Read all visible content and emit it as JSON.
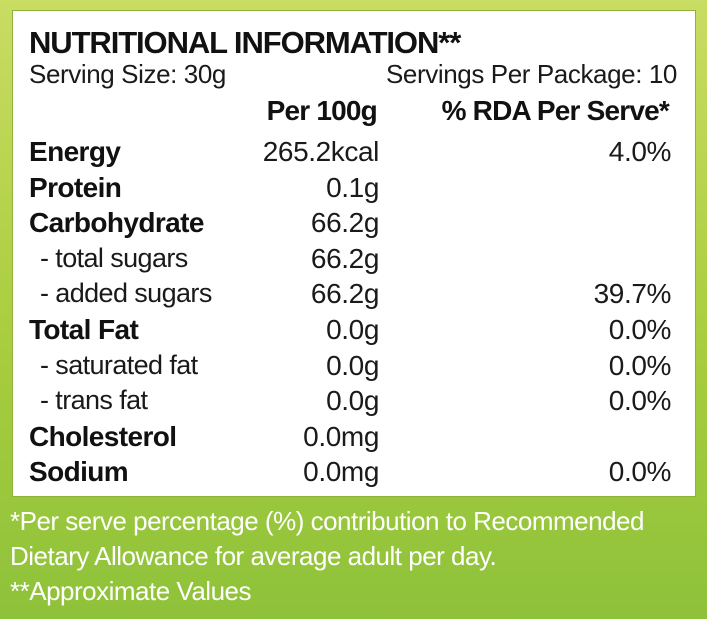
{
  "title": "NUTRITIONAL INFORMATION**",
  "serving_size": "Serving Size: 30g",
  "servings_per_package": "Servings Per Package: 10",
  "columns": {
    "per100": "Per 100g",
    "rda": "% RDA Per Serve*"
  },
  "rows": [
    {
      "label": "Energy",
      "per100": "265.2kcal",
      "rda": "4.0%"
    },
    {
      "label": "Protein",
      "per100": "0.1g",
      "rda": ""
    },
    {
      "label": "Carbohydrate",
      "per100": "66.2g",
      "rda": ""
    },
    {
      "label": "- total sugars",
      "per100": "66.2g",
      "rda": ""
    },
    {
      "label": "- added sugars",
      "per100": "66.2g",
      "rda": "39.7%"
    },
    {
      "label": "Total Fat",
      "per100": "0.0g",
      "rda": "0.0%"
    },
    {
      "label": "- saturated fat",
      "per100": "0.0g",
      "rda": "0.0%"
    },
    {
      "label": "- trans fat",
      "per100": "0.0g",
      "rda": "0.0%"
    },
    {
      "label": "Cholesterol",
      "per100": "0.0mg",
      "rda": ""
    },
    {
      "label": "Sodium",
      "per100": "0.0mg",
      "rda": "0.0%"
    }
  ],
  "footnotes": {
    "line1": "*Per serve percentage (%) contribution to Recommended",
    "line2": "Dietary Allowance for average adult per day.",
    "line3": "**Approximate Values"
  },
  "colors": {
    "background_top": "#c9dc63",
    "background_bottom": "#8ec23a",
    "panel": "#ffffff",
    "text": "#111111",
    "footnote_text": "#ffffff"
  }
}
